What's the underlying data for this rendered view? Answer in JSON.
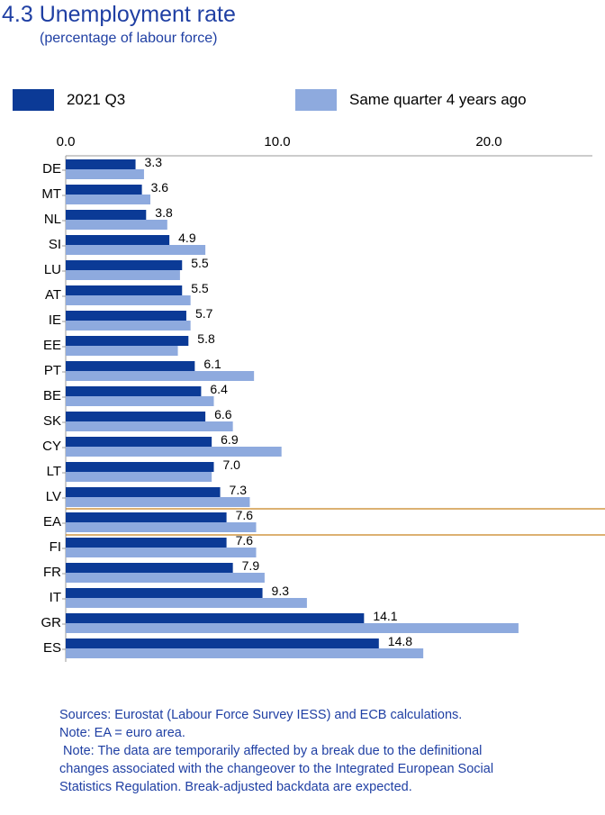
{
  "header": {
    "title": "4.3 Unemployment rate",
    "subtitle": "(percentage of labour force)"
  },
  "legend": {
    "items": [
      {
        "label": "2021 Q3",
        "color": "#0b3a96"
      },
      {
        "label": "Same quarter 4 years ago",
        "color": "#8eaade"
      }
    ]
  },
  "chart_data": {
    "type": "bar",
    "orientation": "horizontal",
    "categories": [
      "DE",
      "MT",
      "NL",
      "SI",
      "LU",
      "AT",
      "IE",
      "EE",
      "PT",
      "BE",
      "SK",
      "CY",
      "LT",
      "LV",
      "EA",
      "FI",
      "FR",
      "IT",
      "GR",
      "ES"
    ],
    "series": [
      {
        "name": "2021 Q3",
        "color": "#0b3a96",
        "values": [
          3.3,
          3.6,
          3.8,
          4.9,
          5.5,
          5.5,
          5.7,
          5.8,
          6.1,
          6.4,
          6.6,
          6.9,
          7.0,
          7.3,
          7.6,
          7.6,
          7.9,
          9.3,
          14.1,
          14.8
        ],
        "labels": [
          "3.3",
          "3.6",
          "3.8",
          "4.9",
          "5.5",
          "5.5",
          "5.7",
          "5.8",
          "6.1",
          "6.4",
          "6.6",
          "6.9",
          "7.0",
          "7.3",
          "7.6",
          "7.6",
          "7.9",
          "9.3",
          "14.1",
          "14.8"
        ]
      },
      {
        "name": "Same quarter 4 years ago",
        "color": "#8eaade",
        "values": [
          3.7,
          4.0,
          4.8,
          6.6,
          5.4,
          5.9,
          5.9,
          5.3,
          8.9,
          7.0,
          7.9,
          10.2,
          6.9,
          8.7,
          9.0,
          9.0,
          9.4,
          11.4,
          21.4,
          16.9
        ]
      }
    ],
    "xlim": [
      0,
      25
    ],
    "xticks": [
      0,
      10,
      20
    ],
    "xtick_labels": [
      "0.0",
      "10.0",
      "20.0"
    ],
    "highlight_category": "EA",
    "highlight_color": "#c8821e",
    "axis_position": "top"
  },
  "footer": {
    "sources": "Sources: Eurostat (Labour Force Survey IESS) and ECB calculations.",
    "note1": "Note: EA = euro area.",
    "note2_lines": [
      " Note: The data are temporarily affected by a break due to the definitional",
      "changes associated with the changeover to the Integrated European Social",
      "Statistics Regulation. Break-adjusted backdata are expected."
    ]
  }
}
